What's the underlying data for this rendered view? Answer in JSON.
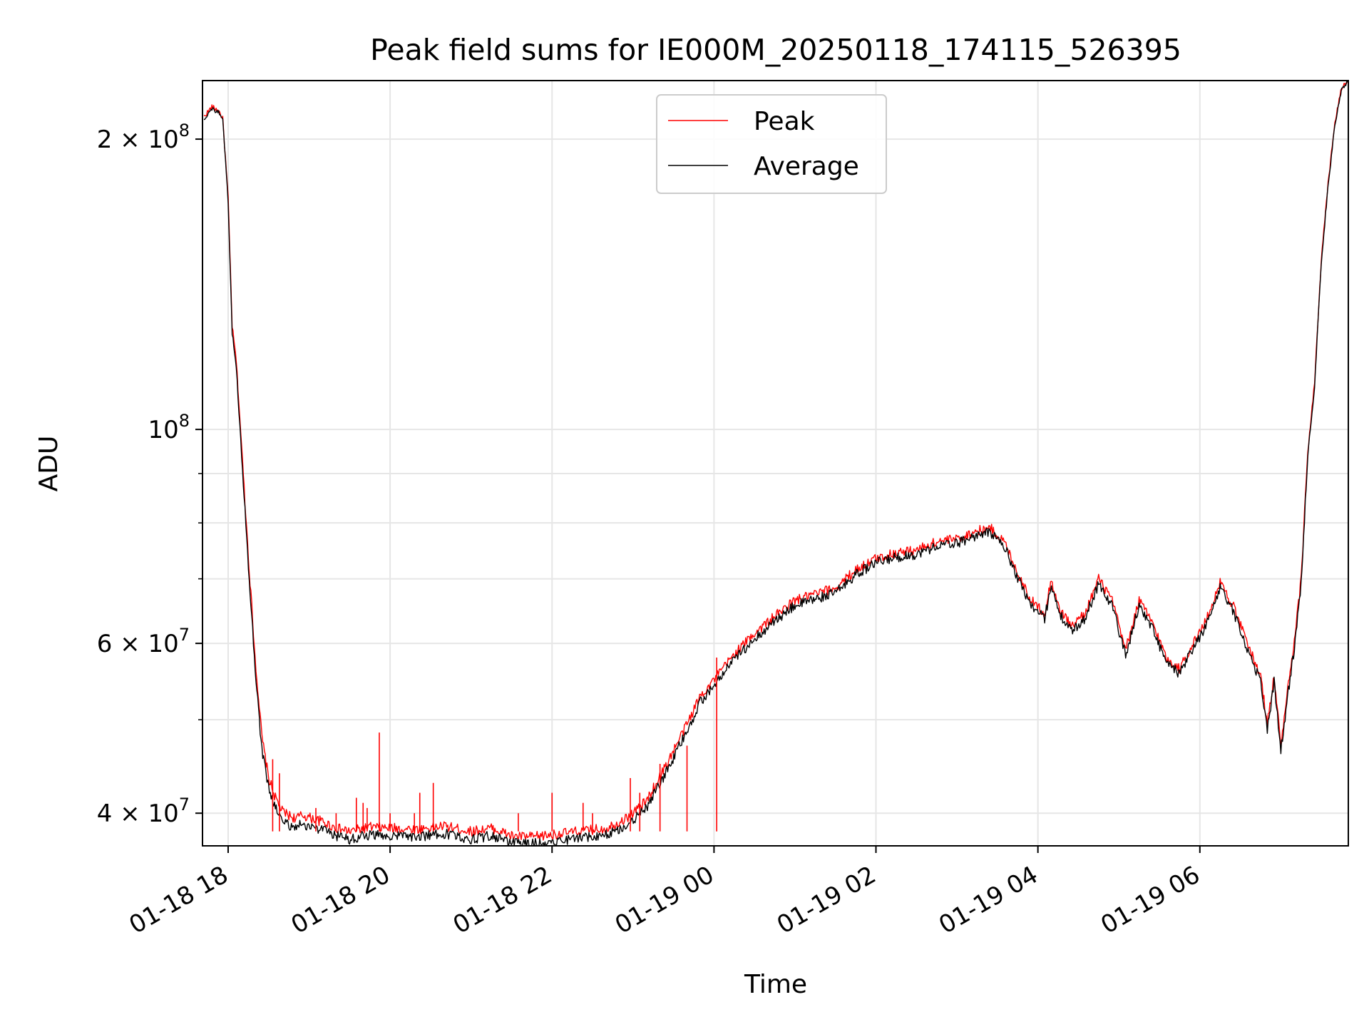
{
  "chart_data": {
    "type": "line",
    "title": "Peak field sums for IE000M_20250118_174115_526395",
    "xlabel": "Time",
    "ylabel": "ADU",
    "yscale": "log",
    "xlim": [
      "2025-01-18 17:41",
      "2025-01-19 07:50"
    ],
    "ylim": [
      37000000,
      230000000
    ],
    "grid": true,
    "legend_position": "top-center",
    "x_ticks": [
      {
        "value": "2025-01-18 18:00",
        "label": "01-18 18"
      },
      {
        "value": "2025-01-18 20:00",
        "label": "01-18 20"
      },
      {
        "value": "2025-01-18 22:00",
        "label": "01-18 22"
      },
      {
        "value": "2025-01-19 00:00",
        "label": "01-19 00"
      },
      {
        "value": "2025-01-19 02:00",
        "label": "01-19 02"
      },
      {
        "value": "2025-01-19 04:00",
        "label": "01-19 04"
      },
      {
        "value": "2025-01-19 06:00",
        "label": "01-19 06"
      }
    ],
    "y_major_ticks": [
      {
        "value": 40000000,
        "mant": "4 × 10",
        "exp": "7"
      },
      {
        "value": 60000000,
        "mant": "6 × 10",
        "exp": "7"
      },
      {
        "value": 100000000,
        "mant": "10",
        "exp": "8"
      },
      {
        "value": 200000000,
        "mant": "2 × 10",
        "exp": "8"
      }
    ],
    "y_minor_gridlines": [
      50000000,
      70000000,
      80000000,
      90000000
    ],
    "series": [
      {
        "name": "Peak",
        "color": "#ff0000",
        "points": [
          [
            "2025-01-18 17:42",
            211000000
          ],
          [
            "2025-01-18 17:48",
            216000000
          ],
          [
            "2025-01-18 17:53",
            214000000
          ],
          [
            "2025-01-18 17:56",
            210000000
          ],
          [
            "2025-01-18 18:00",
            174000000
          ],
          [
            "2025-01-18 18:03",
            128000000
          ],
          [
            "2025-01-18 18:06",
            118000000
          ],
          [
            "2025-01-18 18:10",
            96000000
          ],
          [
            "2025-01-18 18:15",
            74000000
          ],
          [
            "2025-01-18 18:20",
            58000000
          ],
          [
            "2025-01-18 18:25",
            48000000
          ],
          [
            "2025-01-18 18:30",
            43500000
          ],
          [
            "2025-01-18 18:35",
            41500000
          ],
          [
            "2025-01-18 18:40",
            40200000
          ],
          [
            "2025-01-18 18:45",
            39800000
          ],
          [
            "2025-01-18 18:50",
            39500000
          ],
          [
            "2025-01-18 18:55",
            39800000
          ],
          [
            "2025-01-18 19:00",
            39600000
          ],
          [
            "2025-01-18 19:10",
            39200000
          ],
          [
            "2025-01-18 19:20",
            38600000
          ],
          [
            "2025-01-18 19:30",
            38300000
          ],
          [
            "2025-01-18 19:45",
            38700000
          ],
          [
            "2025-01-18 20:00",
            38600000
          ],
          [
            "2025-01-18 20:20",
            38500000
          ],
          [
            "2025-01-18 20:40",
            38800000
          ],
          [
            "2025-01-18 21:00",
            38300000
          ],
          [
            "2025-01-18 21:15",
            38600000
          ],
          [
            "2025-01-18 21:30",
            37900000
          ],
          [
            "2025-01-18 21:45",
            37800000
          ],
          [
            "2025-01-18 22:00",
            38000000
          ],
          [
            "2025-01-18 22:20",
            38300000
          ],
          [
            "2025-01-18 22:40",
            38600000
          ],
          [
            "2025-01-18 22:55",
            39500000
          ],
          [
            "2025-01-18 23:10",
            41200000
          ],
          [
            "2025-01-18 23:25",
            45000000
          ],
          [
            "2025-01-18 23:40",
            49500000
          ],
          [
            "2025-01-18 23:50",
            53000000
          ],
          [
            "2025-01-19 00:00",
            55000000
          ],
          [
            "2025-01-19 00:15",
            58500000
          ],
          [
            "2025-01-19 00:30",
            61500000
          ],
          [
            "2025-01-19 00:45",
            64000000
          ],
          [
            "2025-01-19 01:00",
            66500000
          ],
          [
            "2025-01-19 01:15",
            67500000
          ],
          [
            "2025-01-19 01:30",
            68500000
          ],
          [
            "2025-01-19 01:45",
            71500000
          ],
          [
            "2025-01-19 02:00",
            73500000
          ],
          [
            "2025-01-19 02:15",
            74500000
          ],
          [
            "2025-01-19 02:30",
            75000000
          ],
          [
            "2025-01-19 02:45",
            76500000
          ],
          [
            "2025-01-19 03:00",
            77000000
          ],
          [
            "2025-01-19 03:15",
            78500000
          ],
          [
            "2025-01-19 03:25",
            79000000
          ],
          [
            "2025-01-19 03:35",
            76500000
          ],
          [
            "2025-01-19 03:45",
            71000000
          ],
          [
            "2025-01-19 03:55",
            66500000
          ],
          [
            "2025-01-19 04:05",
            64500000
          ],
          [
            "2025-01-19 04:10",
            70000000
          ],
          [
            "2025-01-19 04:15",
            65500000
          ],
          [
            "2025-01-19 04:25",
            62500000
          ],
          [
            "2025-01-19 04:35",
            64500000
          ],
          [
            "2025-01-19 04:45",
            70000000
          ],
          [
            "2025-01-19 04:55",
            66500000
          ],
          [
            "2025-01-19 05:05",
            59000000
          ],
          [
            "2025-01-19 05:15",
            66500000
          ],
          [
            "2025-01-19 05:25",
            63000000
          ],
          [
            "2025-01-19 05:35",
            58000000
          ],
          [
            "2025-01-19 05:45",
            56500000
          ],
          [
            "2025-01-19 05:55",
            60000000
          ],
          [
            "2025-01-19 06:05",
            63500000
          ],
          [
            "2025-01-19 06:15",
            69500000
          ],
          [
            "2025-01-19 06:25",
            65500000
          ],
          [
            "2025-01-19 06:35",
            60000000
          ],
          [
            "2025-01-19 06:45",
            55500000
          ],
          [
            "2025-01-19 06:50",
            49500000
          ],
          [
            "2025-01-19 06:55",
            55500000
          ],
          [
            "2025-01-19 07:00",
            47000000
          ],
          [
            "2025-01-19 07:05",
            53500000
          ],
          [
            "2025-01-19 07:10",
            60000000
          ],
          [
            "2025-01-19 07:15",
            70000000
          ],
          [
            "2025-01-19 07:20",
            95000000
          ],
          [
            "2025-01-19 07:25",
            112000000
          ],
          [
            "2025-01-19 07:30",
            150000000
          ],
          [
            "2025-01-19 07:35",
            180000000
          ],
          [
            "2025-01-19 07:40",
            208000000
          ],
          [
            "2025-01-19 07:45",
            226000000
          ],
          [
            "2025-01-19 07:50",
            230000000
          ]
        ]
      },
      {
        "name": "Average",
        "color": "#000000",
        "points": [
          [
            "2025-01-18 17:42",
            210000000
          ],
          [
            "2025-01-18 17:48",
            215000000
          ],
          [
            "2025-01-18 17:53",
            213000000
          ],
          [
            "2025-01-18 17:56",
            209000000
          ],
          [
            "2025-01-18 18:00",
            172000000
          ],
          [
            "2025-01-18 18:03",
            126000000
          ],
          [
            "2025-01-18 18:06",
            116000000
          ],
          [
            "2025-01-18 18:10",
            94000000
          ],
          [
            "2025-01-18 18:15",
            72000000
          ],
          [
            "2025-01-18 18:20",
            56500000
          ],
          [
            "2025-01-18 18:25",
            46500000
          ],
          [
            "2025-01-18 18:30",
            42500000
          ],
          [
            "2025-01-18 18:35",
            40500000
          ],
          [
            "2025-01-18 18:40",
            39300000
          ],
          [
            "2025-01-18 18:45",
            38900000
          ],
          [
            "2025-01-18 18:50",
            38700000
          ],
          [
            "2025-01-18 18:55",
            39000000
          ],
          [
            "2025-01-18 19:00",
            38800000
          ],
          [
            "2025-01-18 19:10",
            38400000
          ],
          [
            "2025-01-18 19:20",
            37900000
          ],
          [
            "2025-01-18 19:30",
            37600000
          ],
          [
            "2025-01-18 19:45",
            38000000
          ],
          [
            "2025-01-18 20:00",
            37900000
          ],
          [
            "2025-01-18 20:20",
            37800000
          ],
          [
            "2025-01-18 20:40",
            38100000
          ],
          [
            "2025-01-18 21:00",
            37600000
          ],
          [
            "2025-01-18 21:15",
            37900000
          ],
          [
            "2025-01-18 21:30",
            37300000
          ],
          [
            "2025-01-18 21:45",
            37200000
          ],
          [
            "2025-01-18 22:00",
            37400000
          ],
          [
            "2025-01-18 22:20",
            37700000
          ],
          [
            "2025-01-18 22:40",
            38000000
          ],
          [
            "2025-01-18 22:55",
            38800000
          ],
          [
            "2025-01-18 23:10",
            40500000
          ],
          [
            "2025-01-18 23:25",
            44200000
          ],
          [
            "2025-01-18 23:40",
            48700000
          ],
          [
            "2025-01-18 23:50",
            52200000
          ],
          [
            "2025-01-19 00:00",
            54200000
          ],
          [
            "2025-01-19 00:15",
            57700000
          ],
          [
            "2025-01-19 00:30",
            60700000
          ],
          [
            "2025-01-19 00:45",
            63200000
          ],
          [
            "2025-01-19 01:00",
            65700000
          ],
          [
            "2025-01-19 01:15",
            66700000
          ],
          [
            "2025-01-19 01:30",
            67700000
          ],
          [
            "2025-01-19 01:45",
            70700000
          ],
          [
            "2025-01-19 02:00",
            72700000
          ],
          [
            "2025-01-19 02:15",
            73700000
          ],
          [
            "2025-01-19 02:30",
            74200000
          ],
          [
            "2025-01-19 02:45",
            75700000
          ],
          [
            "2025-01-19 03:00",
            76200000
          ],
          [
            "2025-01-19 03:15",
            77700000
          ],
          [
            "2025-01-19 03:25",
            78200000
          ],
          [
            "2025-01-19 03:35",
            75700000
          ],
          [
            "2025-01-19 03:45",
            70200000
          ],
          [
            "2025-01-19 03:55",
            65700000
          ],
          [
            "2025-01-19 04:05",
            63700000
          ],
          [
            "2025-01-19 04:10",
            69200000
          ],
          [
            "2025-01-19 04:15",
            64700000
          ],
          [
            "2025-01-19 04:25",
            61700000
          ],
          [
            "2025-01-19 04:35",
            63700000
          ],
          [
            "2025-01-19 04:45",
            69200000
          ],
          [
            "2025-01-19 04:55",
            65700000
          ],
          [
            "2025-01-19 05:05",
            58300000
          ],
          [
            "2025-01-19 05:15",
            65700000
          ],
          [
            "2025-01-19 05:25",
            62200000
          ],
          [
            "2025-01-19 05:35",
            57300000
          ],
          [
            "2025-01-19 05:45",
            55800000
          ],
          [
            "2025-01-19 05:55",
            59300000
          ],
          [
            "2025-01-19 06:05",
            62700000
          ],
          [
            "2025-01-19 06:15",
            68700000
          ],
          [
            "2025-01-19 06:25",
            64700000
          ],
          [
            "2025-01-19 06:35",
            59300000
          ],
          [
            "2025-01-19 06:45",
            54800000
          ],
          [
            "2025-01-19 06:50",
            48800000
          ],
          [
            "2025-01-19 06:55",
            54800000
          ],
          [
            "2025-01-19 07:00",
            46400000
          ],
          [
            "2025-01-19 07:05",
            52800000
          ],
          [
            "2025-01-19 07:10",
            59300000
          ],
          [
            "2025-01-19 07:15",
            69200000
          ],
          [
            "2025-01-19 07:20",
            94000000
          ],
          [
            "2025-01-19 07:25",
            111000000
          ],
          [
            "2025-01-19 07:30",
            149000000
          ],
          [
            "2025-01-19 07:35",
            179000000
          ],
          [
            "2025-01-19 07:40",
            207000000
          ],
          [
            "2025-01-19 07:45",
            225000000
          ],
          [
            "2025-01-19 07:50",
            229000000
          ]
        ]
      }
    ],
    "peak_spikes": [
      [
        "2025-01-18 18:33",
        45500000
      ],
      [
        "2025-01-18 18:38",
        44000000
      ],
      [
        "2025-01-18 19:05",
        40500000
      ],
      [
        "2025-01-18 19:20",
        40000000
      ],
      [
        "2025-01-18 19:35",
        41500000
      ],
      [
        "2025-01-18 19:40",
        41000000
      ],
      [
        "2025-01-18 19:43",
        40500000
      ],
      [
        "2025-01-18 19:52",
        48500000
      ],
      [
        "2025-01-18 20:00",
        40000000
      ],
      [
        "2025-01-18 20:18",
        40000000
      ],
      [
        "2025-01-18 20:22",
        42000000
      ],
      [
        "2025-01-18 20:32",
        43000000
      ],
      [
        "2025-01-18 21:35",
        40000000
      ],
      [
        "2025-01-18 22:00",
        42000000
      ],
      [
        "2025-01-18 22:23",
        41000000
      ],
      [
        "2025-01-18 22:30",
        40000000
      ],
      [
        "2025-01-18 22:58",
        43500000
      ],
      [
        "2025-01-18 23:05",
        42000000
      ],
      [
        "2025-01-18 23:20",
        45000000
      ],
      [
        "2025-01-18 23:40",
        47000000
      ],
      [
        "2025-01-19 00:02",
        58000000
      ]
    ]
  }
}
